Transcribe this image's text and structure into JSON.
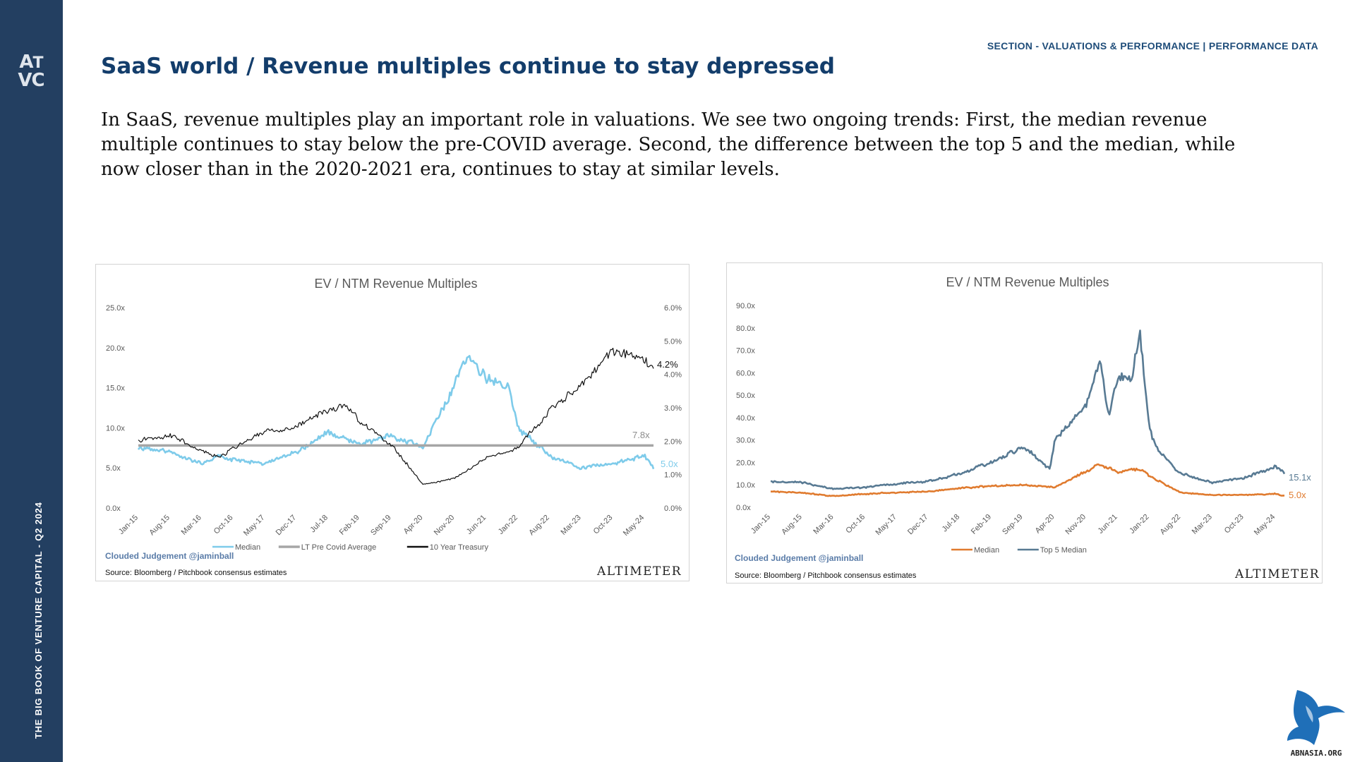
{
  "sidebar": {
    "logo_text": "ATVC",
    "book_title": "THE BIG BOOK OF VENTURE CAPITAL - Q2 2024"
  },
  "header": {
    "section_label": "SECTION - VALUATIONS & PERFORMANCE | PERFORMANCE DATA",
    "title": "SaaS world / Revenue multiples continue to stay depressed"
  },
  "body_text": "In SaaS, revenue multiples play an important role in valuations. We see two ongoing trends: First, the median revenue multiple continues to stay below the pre-COVID average. Second, the difference between the top 5 and the median, while now closer than in the 2020-2021 era, continues to stay at similar levels.",
  "corner_logo_text": "ABNASIA.ORG",
  "chart_data": [
    {
      "type": "line",
      "title": "EV / NTM Revenue Multiples",
      "x_ticks": [
        "Jan-15",
        "Aug-15",
        "Mar-16",
        "Oct-16",
        "May-17",
        "Dec-17",
        "Jul-18",
        "Feb-19",
        "Sep-19",
        "Apr-20",
        "Nov-20",
        "Jun-21",
        "Jan-22",
        "Aug-22",
        "Mar-23",
        "Oct-23",
        "May-24"
      ],
      "y_ticks": [
        "0.0x",
        "5.0x",
        "10.0x",
        "15.0x",
        "20.0x",
        "25.0x"
      ],
      "y2_ticks": [
        "0.0%",
        "1.0%",
        "2.0%",
        "3.0%",
        "4.0%",
        "5.0%",
        "6.0%"
      ],
      "ylim": [
        0,
        25
      ],
      "y2lim": [
        0,
        6
      ],
      "grid": false,
      "legend_position": "bottom",
      "series": [
        {
          "name": "Median",
          "axis": "left",
          "color": "#7ecbea",
          "x": [
            "Jan-15",
            "Aug-15",
            "Mar-16",
            "Jul-16",
            "Oct-16",
            "May-17",
            "Dec-17",
            "Jul-18",
            "Feb-19",
            "Sep-19",
            "Apr-20",
            "Nov-20",
            "Feb-21",
            "Jun-21",
            "Nov-21",
            "Jan-22",
            "Aug-22",
            "Mar-23",
            "Oct-23",
            "May-24",
            "Jul-24"
          ],
          "values": [
            7.5,
            7.0,
            5.5,
            6.5,
            6.0,
            5.5,
            7.0,
            9.5,
            8.0,
            9.0,
            7.5,
            15.5,
            19.5,
            16.0,
            15.0,
            10.0,
            6.5,
            5.0,
            5.5,
            6.5,
            5.0
          ]
        },
        {
          "name": "LT Pre Covid Average",
          "axis": "left",
          "color": "#a6a6a6",
          "x": [
            "Jan-15",
            "Jul-24"
          ],
          "values": [
            7.8,
            7.8
          ]
        },
        {
          "name": "10 Year Treasury",
          "axis": "right",
          "color": "#111111",
          "x": [
            "Jan-15",
            "Aug-15",
            "Mar-16",
            "Jul-16",
            "Oct-16",
            "May-17",
            "Dec-17",
            "Jul-18",
            "Nov-18",
            "Feb-19",
            "Sep-19",
            "Apr-20",
            "Nov-20",
            "Jun-21",
            "Jan-22",
            "Aug-22",
            "Mar-23",
            "Oct-23",
            "May-24",
            "Jul-24"
          ],
          "values": [
            2.0,
            2.2,
            1.7,
            1.5,
            1.8,
            2.3,
            2.4,
            2.9,
            3.1,
            2.6,
            1.9,
            0.7,
            0.9,
            1.5,
            1.8,
            2.9,
            3.7,
            4.7,
            4.4,
            4.2
          ]
        }
      ],
      "end_labels": {
        "median": "5.0x",
        "lt_avg": "7.8x",
        "treasury": "4.2%"
      },
      "credit": "Clouded Judgement @jaminball",
      "source": "Source: Bloomberg / Pitchbook consensus estimates",
      "brand": "ALTIMETER"
    },
    {
      "type": "line",
      "title": "EV / NTM Revenue Multiples",
      "x_ticks": [
        "Jan-15",
        "Aug-15",
        "Mar-16",
        "Oct-16",
        "May-17",
        "Dec-17",
        "Jul-18",
        "Feb-19",
        "Sep-19",
        "Apr-20",
        "Nov-20",
        "Jun-21",
        "Jan-22",
        "Aug-22",
        "Mar-23",
        "Oct-23",
        "May-24"
      ],
      "y_ticks": [
        "0.0x",
        "10.0x",
        "20.0x",
        "30.0x",
        "40.0x",
        "50.0x",
        "60.0x",
        "70.0x",
        "80.0x",
        "90.0x"
      ],
      "ylim": [
        0,
        90
      ],
      "grid": false,
      "legend_position": "bottom",
      "series": [
        {
          "name": "Median",
          "color": "#e07b2f",
          "x": [
            "Jan-15",
            "Aug-15",
            "Mar-16",
            "Oct-16",
            "May-17",
            "Dec-17",
            "Jul-18",
            "Feb-19",
            "Sep-19",
            "Apr-20",
            "Nov-20",
            "Feb-21",
            "Jun-21",
            "Nov-21",
            "Jan-22",
            "Aug-22",
            "Mar-23",
            "Oct-23",
            "May-24",
            "Jul-24"
          ],
          "values": [
            7.0,
            6.5,
            5.0,
            6.0,
            6.5,
            7.0,
            8.5,
            9.5,
            10.0,
            9.0,
            16.0,
            19.0,
            16.0,
            17.0,
            14.0,
            6.5,
            5.5,
            5.5,
            6.0,
            5.0
          ]
        },
        {
          "name": "Top 5 Median",
          "color": "#587a93",
          "x": [
            "Jan-15",
            "Aug-15",
            "Mar-16",
            "Oct-16",
            "May-17",
            "Dec-17",
            "Jul-18",
            "Feb-19",
            "Sep-19",
            "Mar-20",
            "Apr-20",
            "Nov-20",
            "Feb-21",
            "Apr-21",
            "Jun-21",
            "Sep-21",
            "Nov-21",
            "Dec-21",
            "Jan-22",
            "Mar-22",
            "Aug-22",
            "Mar-23",
            "Oct-23",
            "May-24",
            "Jul-24"
          ],
          "values": [
            11.5,
            11.0,
            8.0,
            9.0,
            10.5,
            11.5,
            15.0,
            20.0,
            27.0,
            17.0,
            30.0,
            45.0,
            67.0,
            40.0,
            58.0,
            57.0,
            78.0,
            55.0,
            35.0,
            25.0,
            15.0,
            11.0,
            13.0,
            18.0,
            15.1
          ]
        }
      ],
      "end_labels": {
        "top5": "15.1x",
        "median": "5.0x"
      },
      "credit": "Clouded Judgement @jaminball",
      "source": "Source: Bloomberg / Pitchbook consensus estimates",
      "brand": "ALTIMETER"
    }
  ]
}
